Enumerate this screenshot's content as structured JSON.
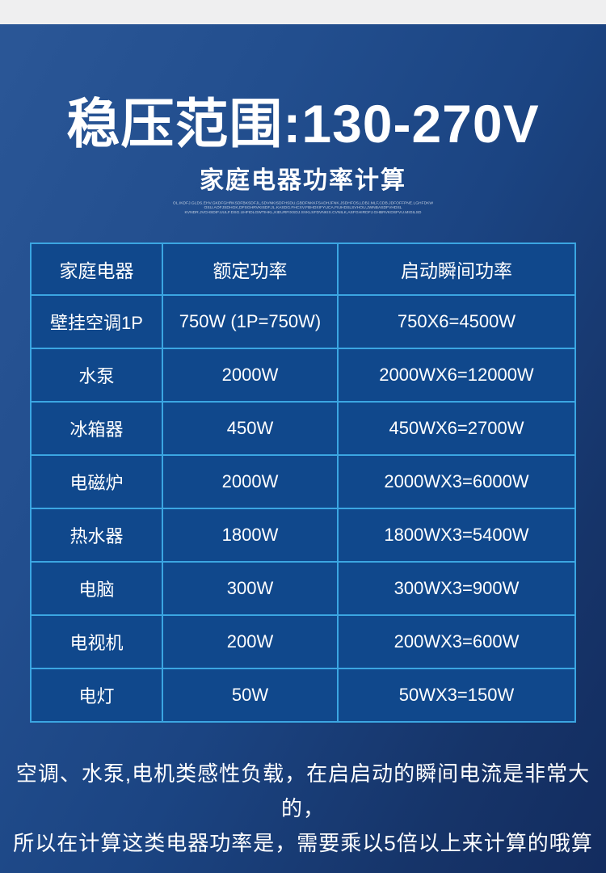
{
  "page": {
    "title": "稳压范围:130-270V",
    "subtitle": "家庭电器功率计算",
    "fine_print": [
      "OL.IKDFJ.GLDS.EHV.GKDFGHRKSDFBKSDFJL,SDVNKISDFHSDU,GBDFNKKFSADHJFNK.JSDHFOS,LDBJ.MLF,CDB.JDFOFFPNE.LGHFDKW",
      "OSU.AOFJSDHGK,DFSGHRVKISDF.JL.KASDG.FHCXV.FBHDXIFYUCA.FIUHDSLSVHOU,JWNBASDFVHDSL",
      "KVNDR.JVCHSDIF.UULF.DSG.UHFIDLGWTIHKL,KIEURFIXSDJ.SVKLSFDVNKIX.CVNILK,ASFGHIRDFJ.GHBRVKDSFVU.MIGILSD"
    ]
  },
  "table": {
    "headers": [
      "家庭电器",
      "额定功率",
      "启动瞬间功率"
    ],
    "rows": [
      [
        "壁挂空调1P",
        "750W (1P=750W)",
        "750X6=4500W"
      ],
      [
        "水泵",
        "2000W",
        "2000WX6=12000W"
      ],
      [
        "冰箱器",
        "450W",
        "450WX6=2700W"
      ],
      [
        "电磁炉",
        "2000W",
        "2000WX3=6000W"
      ],
      [
        "热水器",
        "1800W",
        "1800WX3=5400W"
      ],
      [
        "电脑",
        "300W",
        "300WX3=900W"
      ],
      [
        "电视机",
        "200W",
        "200WX3=600W"
      ],
      [
        "电灯",
        "50W",
        "50WX3=150W"
      ]
    ]
  },
  "footer_note": {
    "line1": "空调、水泵,电机类感性负载，在启启动的瞬间电流是非常大的，",
    "line2": "所以在计算这类电器功率是，需要乘以5倍以上来计算的哦算"
  },
  "colors": {
    "top_strip": "#efeff0",
    "background_top": "#2b5797",
    "background_bottom": "#132c5f",
    "table_border": "#3ba6e2",
    "cell_background": "#10488c",
    "text": "#ffffff"
  }
}
